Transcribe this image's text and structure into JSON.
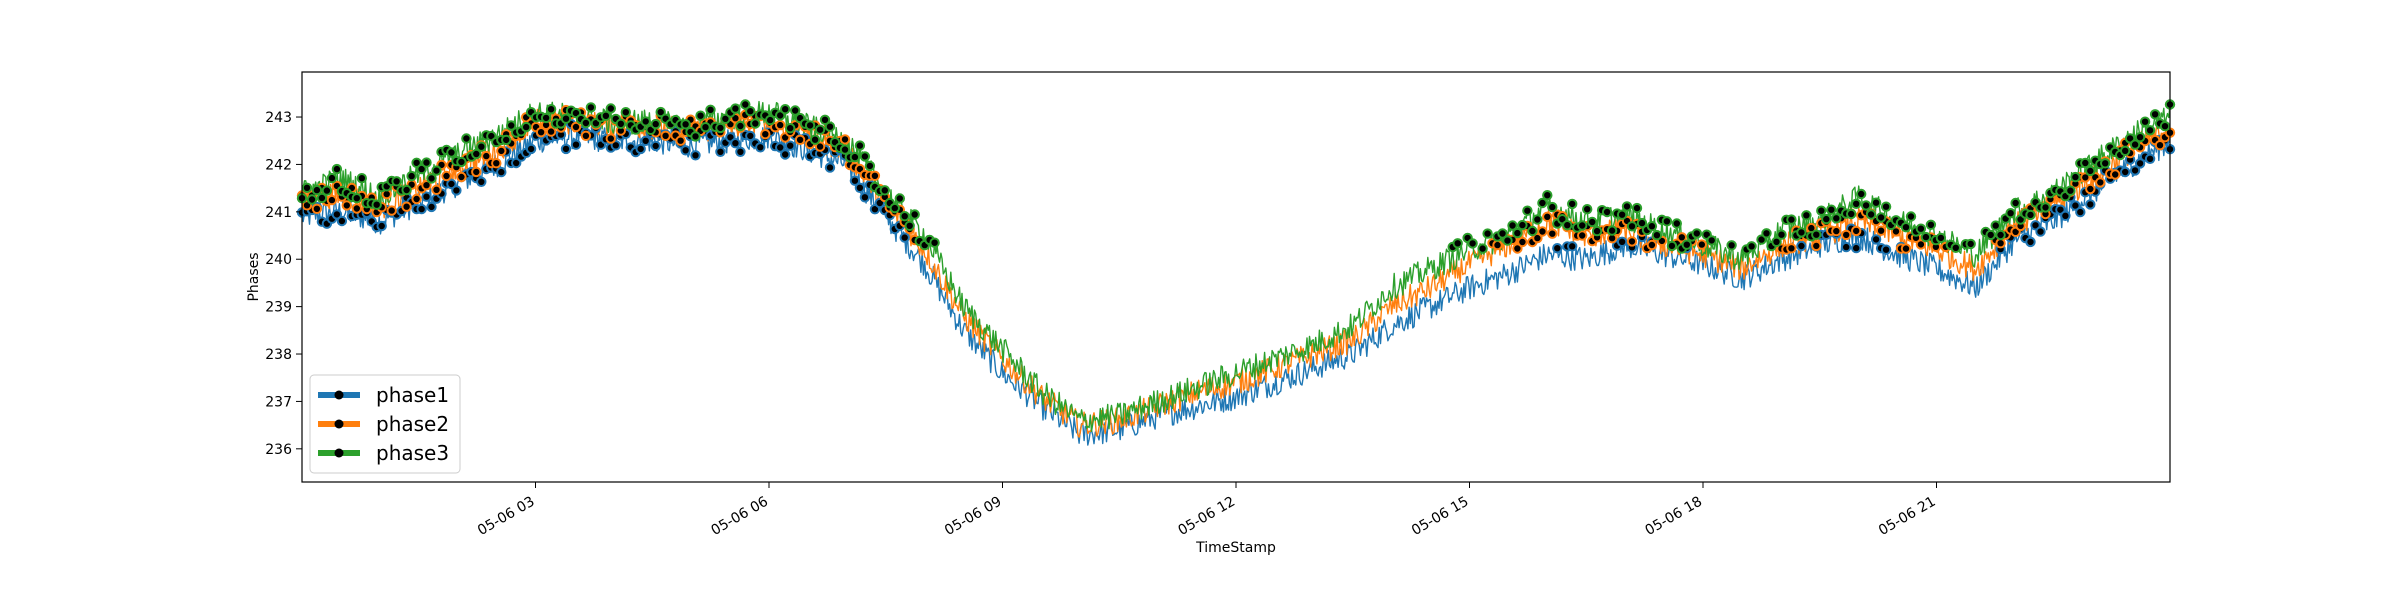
{
  "chart_data": {
    "type": "line",
    "title": "",
    "xlabel": "TimeStamp",
    "ylabel": "Phases",
    "x_unit": "hour of 05-06",
    "xlim": [
      0,
      24
    ],
    "ylim": [
      235.3,
      243.95
    ],
    "grid": false,
    "legend": "lower-left",
    "x_ticks": [
      {
        "x": 3,
        "label": "05-06 03"
      },
      {
        "x": 6,
        "label": "05-06 06"
      },
      {
        "x": 9,
        "label": "05-06 09"
      },
      {
        "x": 12,
        "label": "05-06 12"
      },
      {
        "x": 15,
        "label": "05-06 15"
      },
      {
        "x": 18,
        "label": "05-06 18"
      },
      {
        "x": 21,
        "label": "05-06 21"
      }
    ],
    "y_ticks": [
      236,
      237,
      238,
      239,
      240,
      241,
      242,
      243
    ],
    "marker_threshold": 240.2,
    "marker_color": "#000000",
    "x": [
      0,
      0.5,
      1,
      1.5,
      2,
      2.5,
      3,
      3.5,
      4,
      4.5,
      5,
      5.5,
      6,
      6.5,
      7,
      7.5,
      8,
      8.5,
      9,
      9.5,
      10,
      10.5,
      11,
      11.5,
      12,
      12.5,
      13,
      13.5,
      14,
      14.5,
      15,
      15.5,
      16,
      16.5,
      17,
      17.5,
      18,
      18.5,
      19,
      19.5,
      20,
      20.5,
      21,
      21.5,
      22,
      22.5,
      23,
      23.5,
      24
    ],
    "series": [
      {
        "name": "phase1",
        "color": "#1f77b4",
        "values": [
          240.9,
          241.0,
          240.8,
          241.2,
          241.6,
          242.0,
          242.5,
          242.6,
          242.5,
          242.5,
          242.4,
          242.5,
          242.6,
          242.3,
          242.0,
          240.9,
          239.9,
          238.5,
          237.6,
          236.9,
          236.3,
          236.4,
          236.7,
          236.9,
          237.1,
          237.4,
          237.7,
          238.0,
          238.6,
          239.0,
          239.4,
          239.7,
          240.1,
          240.0,
          240.3,
          240.1,
          239.9,
          239.6,
          240.0,
          240.3,
          240.5,
          240.1,
          239.8,
          239.4,
          240.4,
          240.8,
          241.4,
          242.0,
          242.5
        ]
      },
      {
        "name": "phase2",
        "color": "#ff7f0e",
        "values": [
          241.2,
          241.4,
          241.1,
          241.5,
          241.9,
          242.3,
          242.9,
          242.9,
          242.8,
          242.8,
          242.7,
          242.8,
          242.9,
          242.6,
          242.3,
          241.2,
          240.2,
          238.8,
          237.9,
          237.1,
          236.5,
          236.6,
          236.9,
          237.2,
          237.4,
          237.7,
          238.0,
          238.3,
          239.0,
          239.4,
          239.9,
          240.3,
          240.8,
          240.5,
          240.6,
          240.3,
          240.1,
          239.8,
          240.3,
          240.5,
          240.8,
          240.5,
          240.2,
          239.8,
          240.7,
          241.1,
          241.7,
          242.3,
          242.8
        ]
      },
      {
        "name": "phase3",
        "color": "#2ca02c",
        "values": [
          241.4,
          241.7,
          241.3,
          241.8,
          242.2,
          242.6,
          243.1,
          243.0,
          242.9,
          242.9,
          242.8,
          243.0,
          243.1,
          242.8,
          242.5,
          241.4,
          240.5,
          239.0,
          238.1,
          237.2,
          236.6,
          236.7,
          237.0,
          237.3,
          237.6,
          237.9,
          238.2,
          238.6,
          239.4,
          239.8,
          240.2,
          240.5,
          241.1,
          240.8,
          240.9,
          240.6,
          240.3,
          240.0,
          240.6,
          240.8,
          241.3,
          240.8,
          240.5,
          240.1,
          241.0,
          241.4,
          242.0,
          242.6,
          243.0
        ]
      }
    ]
  }
}
